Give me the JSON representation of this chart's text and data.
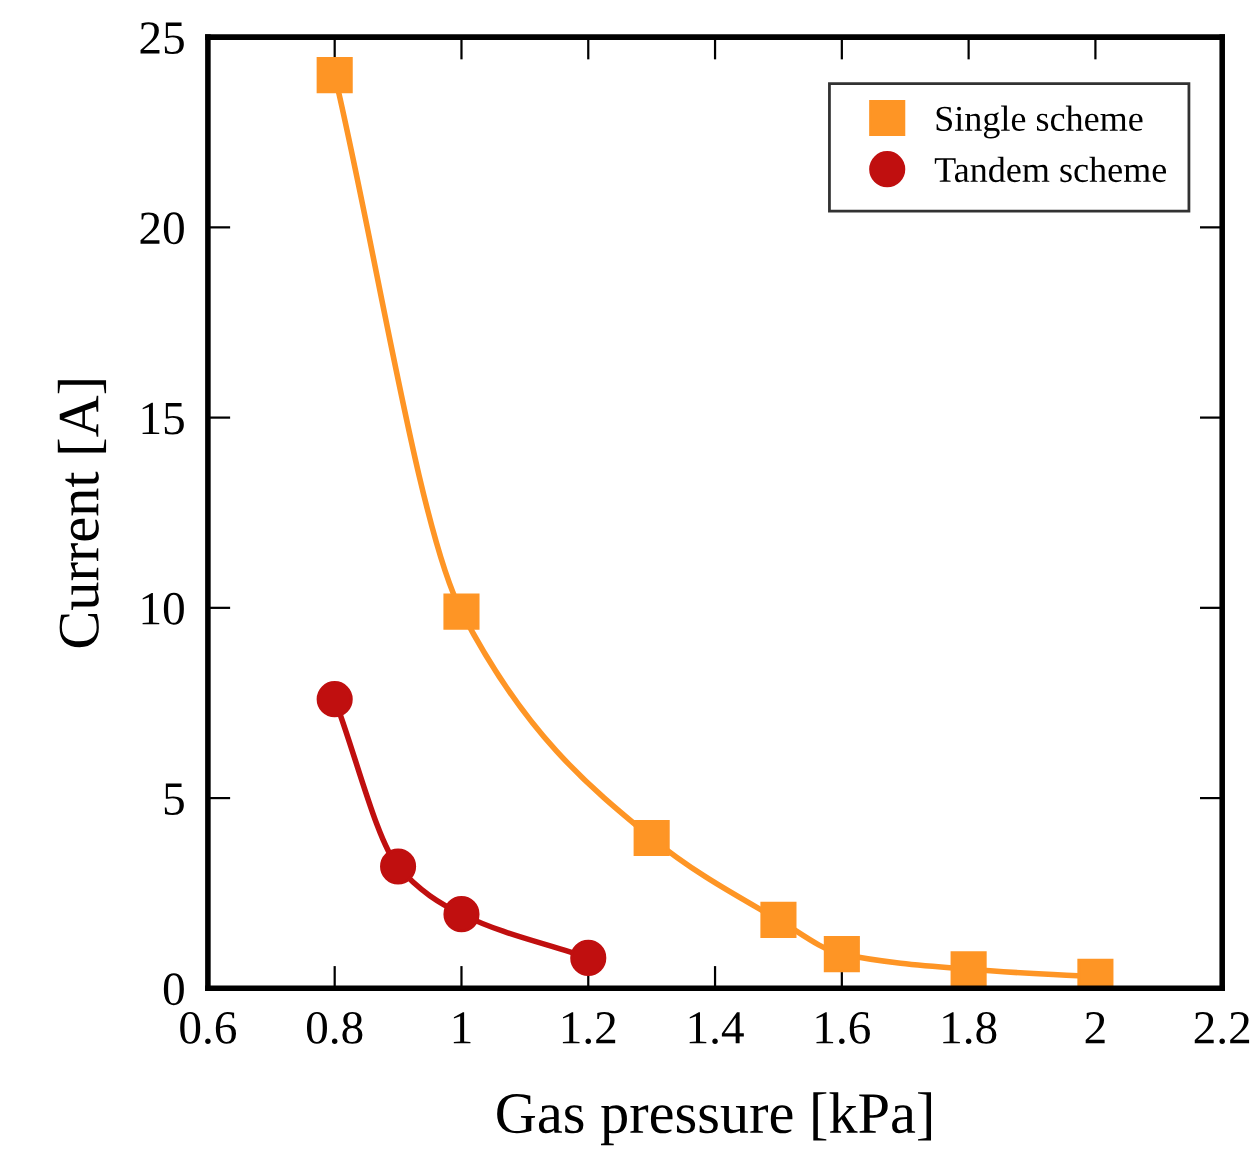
{
  "chart_data": {
    "type": "line",
    "xlabel": "Gas pressure [kPa]",
    "ylabel": "Current [A]",
    "xlim": [
      0.6,
      2.2
    ],
    "xticks": [
      0.6,
      0.8,
      1,
      1.2,
      1.4,
      1.6,
      1.8,
      2,
      2.2
    ],
    "ylim": [
      0,
      25
    ],
    "yticks": [
      0,
      5,
      10,
      15,
      20,
      25
    ],
    "grid": false,
    "legend": "top right",
    "line_style": "solid",
    "series": [
      {
        "name": "Single scheme",
        "color": "#fe9525",
        "marker": "square",
        "x": [
          0.8,
          1.0,
          1.3,
          1.5,
          1.6,
          1.8,
          2.0
        ],
        "values": [
          24,
          9.9,
          3.95,
          1.8,
          0.9,
          0.5,
          0.3
        ]
      },
      {
        "name": "Tandem scheme",
        "color": "#c00f0f",
        "marker": "circle",
        "x": [
          0.8,
          0.9,
          1.0,
          1.2
        ],
        "values": [
          7.6,
          3.2,
          1.95,
          0.8
        ]
      }
    ]
  }
}
